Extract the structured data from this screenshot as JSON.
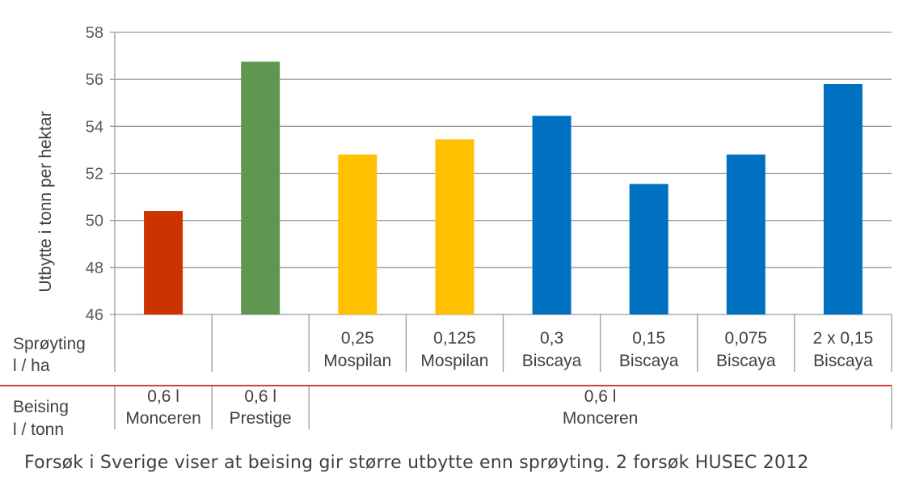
{
  "chart_data": {
    "type": "bar",
    "ylabel": "Utbytte i tonn per hektar",
    "ylim": [
      46,
      58
    ],
    "yticks": [
      46,
      48,
      50,
      52,
      54,
      56,
      58
    ],
    "grid": true,
    "values": [
      50.4,
      56.75,
      52.8,
      53.45,
      54.45,
      51.55,
      52.8,
      55.8
    ],
    "colors": [
      "#CC3300",
      "#5F9650",
      "#FFC000",
      "#FFC000",
      "#0070C0",
      "#0070C0",
      "#0070C0",
      "#0070C0"
    ],
    "categories": [
      [
        "",
        ""
      ],
      [
        "",
        ""
      ],
      [
        "0,25",
        "Mospilan"
      ],
      [
        "0,125",
        "Mospilan"
      ],
      [
        "0,3",
        "Biscaya"
      ],
      [
        "0,15",
        "Biscaya"
      ],
      [
        "0,075",
        "Biscaya"
      ],
      [
        "2 x 0,15",
        "Biscaya"
      ]
    ],
    "row1_header": [
      "Sprøyting",
      "l / ha"
    ],
    "row2_header": [
      "Beising",
      "l / tonn"
    ],
    "row2_groups": [
      {
        "span": [
          0,
          0
        ],
        "lines": [
          "0,6 l",
          "Monceren"
        ]
      },
      {
        "span": [
          1,
          1
        ],
        "lines": [
          "0,6 l",
          "Prestige"
        ]
      },
      {
        "span": [
          2,
          7
        ],
        "lines": [
          "0,6 l",
          "Monceren"
        ]
      }
    ]
  },
  "caption": "Forsøk i Sverige viser at beising gir større utbytte enn sprøyting.  2 forsøk HUSEC 2012"
}
